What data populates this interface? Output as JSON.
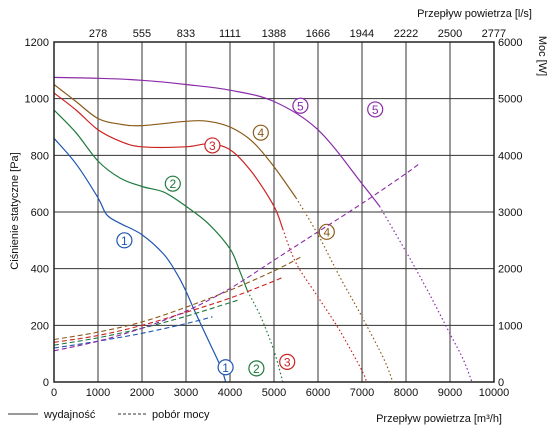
{
  "chart_data": {
    "type": "line",
    "x_top_label": "Przepływ powietrza [l/s]",
    "x_bottom_label": "Przepływ powietrza [m³/h]",
    "y_left_label": "Ciśnienie statyczne [Pa]",
    "y_right_label": "Moc [W]",
    "x_ticks": [
      "0",
      "1000",
      "2000",
      "3000",
      "4000",
      "5000",
      "6000",
      "7000",
      "8000",
      "9000",
      "10000"
    ],
    "x_top_ticks": [
      "278",
      "555",
      "833",
      "1111",
      "1388",
      "1666",
      "1944",
      "2222",
      "2500",
      "2777"
    ],
    "y_left_ticks": [
      "0",
      "200",
      "400",
      "600",
      "800",
      "1000",
      "1200"
    ],
    "y_right_ticks": [
      "0",
      "1000",
      "2000",
      "3000",
      "4000",
      "5000",
      "6000"
    ],
    "xlim": [
      0,
      10000
    ],
    "ylim": [
      0,
      1200
    ],
    "y2lim": [
      0,
      6000
    ],
    "grid": true,
    "legend": {
      "solid": "wydajność",
      "dashed": "pobór mocy"
    },
    "series": [
      {
        "marker": "1",
        "color": "#1f56b0",
        "pressure": [
          [
            0,
            860
          ],
          [
            500,
            770
          ],
          [
            1000,
            650
          ],
          [
            1200,
            590
          ],
          [
            1500,
            560
          ],
          [
            2000,
            520
          ],
          [
            2500,
            450
          ],
          [
            2800,
            380
          ],
          [
            3000,
            320
          ],
          [
            3200,
            250
          ],
          [
            3500,
            150
          ],
          [
            3800,
            50
          ],
          [
            3900,
            0
          ]
        ],
        "power": [
          [
            0,
            600
          ],
          [
            1000,
            720
          ],
          [
            2000,
            860
          ],
          [
            3000,
            1030
          ],
          [
            3600,
            1150
          ]
        ],
        "labels": {
          "pressure": [
            1600,
            500
          ],
          "power": [
            3900,
            260
          ]
        }
      },
      {
        "marker": "2",
        "color": "#1e7a3c",
        "pressure": [
          [
            0,
            960
          ],
          [
            500,
            880
          ],
          [
            1000,
            780
          ],
          [
            1500,
            720
          ],
          [
            2000,
            690
          ],
          [
            2500,
            670
          ],
          [
            3000,
            620
          ],
          [
            3500,
            560
          ],
          [
            4000,
            470
          ],
          [
            4200,
            400
          ],
          [
            4400,
            320
          ]
        ],
        "power": [
          [
            0,
            650
          ],
          [
            1000,
            780
          ],
          [
            2000,
            950
          ],
          [
            3000,
            1160
          ],
          [
            4000,
            1400
          ],
          [
            4200,
            1450
          ]
        ],
        "pressure_dotted": [
          [
            4400,
            320
          ],
          [
            4700,
            230
          ],
          [
            5000,
            110
          ],
          [
            5200,
            0
          ]
        ],
        "labels": {
          "pressure": [
            2700,
            700
          ],
          "power": [
            4600,
            240
          ]
        }
      },
      {
        "marker": "3",
        "color": "#cc2222",
        "pressure": [
          [
            0,
            1020
          ],
          [
            500,
            960
          ],
          [
            1000,
            890
          ],
          [
            1500,
            850
          ],
          [
            2000,
            830
          ],
          [
            3000,
            830
          ],
          [
            3500,
            840
          ],
          [
            4000,
            820
          ],
          [
            4500,
            740
          ],
          [
            5000,
            620
          ],
          [
            5200,
            540
          ]
        ],
        "power": [
          [
            0,
            700
          ],
          [
            1000,
            820
          ],
          [
            2000,
            1000
          ],
          [
            3000,
            1230
          ],
          [
            4000,
            1480
          ],
          [
            5000,
            1780
          ],
          [
            5200,
            1850
          ]
        ],
        "pressure_dotted": [
          [
            5200,
            540
          ],
          [
            5500,
            420
          ],
          [
            6000,
            300
          ],
          [
            6500,
            180
          ],
          [
            7000,
            40
          ],
          [
            7100,
            0
          ]
        ],
        "labels": {
          "pressure": [
            3600,
            835
          ],
          "power": [
            5300,
            355
          ]
        }
      },
      {
        "marker": "4",
        "color": "#8b5a1a",
        "pressure": [
          [
            0,
            1050
          ],
          [
            500,
            990
          ],
          [
            1000,
            930
          ],
          [
            1500,
            910
          ],
          [
            2000,
            905
          ],
          [
            3000,
            920
          ],
          [
            3500,
            920
          ],
          [
            4000,
            900
          ],
          [
            4500,
            850
          ],
          [
            5000,
            760
          ],
          [
            5500,
            650
          ]
        ],
        "power": [
          [
            0,
            750
          ],
          [
            1000,
            880
          ],
          [
            2000,
            1060
          ],
          [
            3000,
            1320
          ],
          [
            4000,
            1620
          ],
          [
            5000,
            1960
          ],
          [
            5600,
            2200
          ]
        ],
        "pressure_dotted": [
          [
            5500,
            650
          ],
          [
            6000,
            520
          ],
          [
            6500,
            370
          ],
          [
            7000,
            230
          ],
          [
            7500,
            80
          ],
          [
            7700,
            0
          ]
        ],
        "labels": {
          "pressure": [
            4700,
            880
          ],
          "power": [
            6200,
            2650
          ]
        }
      },
      {
        "marker": "5",
        "color": "#8a2ba8",
        "pressure": [
          [
            0,
            1075
          ],
          [
            1000,
            1072
          ],
          [
            2000,
            1065
          ],
          [
            3000,
            1050
          ],
          [
            4000,
            1030
          ],
          [
            5000,
            990
          ],
          [
            6000,
            890
          ],
          [
            7000,
            700
          ],
          [
            7400,
            620
          ]
        ],
        "power": [
          [
            0,
            550
          ],
          [
            1000,
            720
          ],
          [
            2000,
            950
          ],
          [
            3000,
            1250
          ],
          [
            4000,
            1650
          ],
          [
            5000,
            2150
          ],
          [
            6000,
            2650
          ],
          [
            7000,
            3150
          ],
          [
            8000,
            3680
          ],
          [
            8300,
            3850
          ]
        ],
        "pressure_dotted": [
          [
            7400,
            620
          ],
          [
            8000,
            460
          ],
          [
            8500,
            320
          ],
          [
            9000,
            170
          ],
          [
            9300,
            80
          ],
          [
            9500,
            0
          ]
        ],
        "labels": {
          "pressure": [
            5600,
            975
          ],
          "power": [
            7300,
            4810
          ]
        }
      }
    ]
  }
}
